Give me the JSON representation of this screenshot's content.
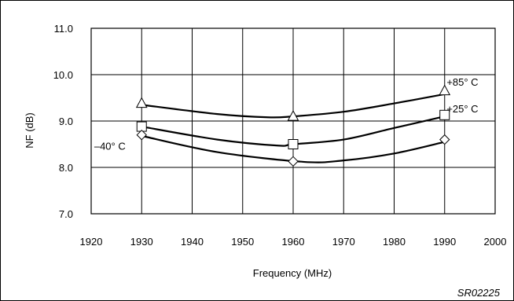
{
  "chart_data": {
    "type": "line",
    "title": "",
    "xlabel": "Frequency (MHz)",
    "ylabel": "NF (dB)",
    "xlim": [
      1920,
      2000
    ],
    "ylim": [
      7.0,
      11.0
    ],
    "x_ticks": [
      "1920",
      "1930",
      "1940",
      "1950",
      "1960",
      "1970",
      "1980",
      "1990",
      "2000"
    ],
    "y_ticks": [
      "7.0",
      "8.0",
      "9.0",
      "10.0",
      "11.0"
    ],
    "grid": true,
    "series": [
      {
        "name": "+85° C",
        "marker": "triangle",
        "x": [
          1930,
          1960,
          1990
        ],
        "y": [
          9.38,
          9.1,
          9.65
        ],
        "curve": [
          [
            1930,
            9.35
          ],
          [
            1945,
            9.15
          ],
          [
            1955,
            9.08
          ],
          [
            1960,
            9.1
          ],
          [
            1970,
            9.2
          ],
          [
            1980,
            9.38
          ],
          [
            1990,
            9.58
          ]
        ]
      },
      {
        "name": "+25° C",
        "marker": "square",
        "x": [
          1930,
          1960,
          1990
        ],
        "y": [
          8.88,
          8.5,
          9.13
        ],
        "curve": [
          [
            1930,
            8.88
          ],
          [
            1945,
            8.6
          ],
          [
            1957,
            8.47
          ],
          [
            1960,
            8.5
          ],
          [
            1970,
            8.6
          ],
          [
            1980,
            8.85
          ],
          [
            1990,
            9.1
          ]
        ]
      },
      {
        "name": "–40° C",
        "marker": "diamond",
        "x": [
          1930,
          1960,
          1990
        ],
        "y": [
          8.7,
          8.13,
          8.6
        ],
        "curve": [
          [
            1930,
            8.68
          ],
          [
            1945,
            8.33
          ],
          [
            1962,
            8.12
          ],
          [
            1970,
            8.15
          ],
          [
            1980,
            8.3
          ],
          [
            1990,
            8.55
          ]
        ]
      }
    ]
  },
  "figure_id": "SR02225"
}
